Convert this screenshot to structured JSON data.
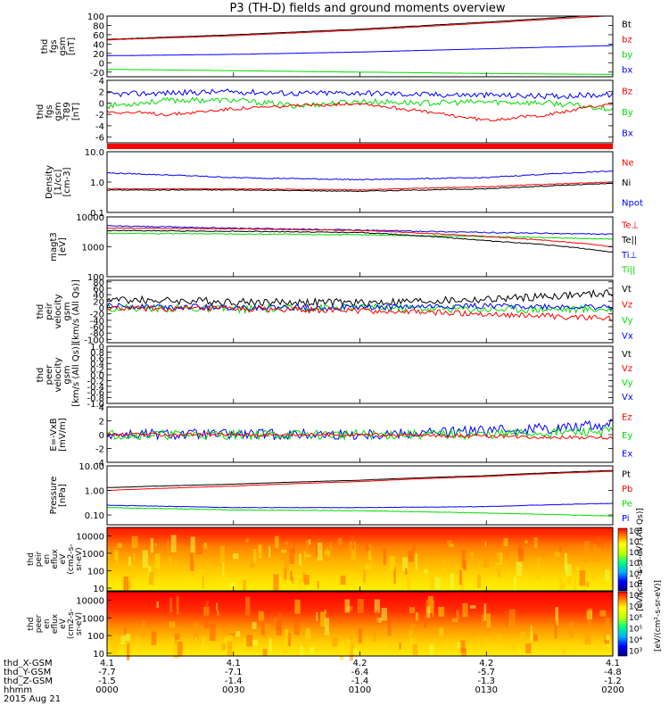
{
  "title": "P3 (TH-D) fields and ground moments overview",
  "colors": {
    "black": "#000000",
    "red": "#ff0000",
    "green": "#00dd00",
    "blue": "#0000ff"
  },
  "chart_data": {
    "type": "line",
    "x_ticks": [
      "0000",
      "0030",
      "0100",
      "0130",
      "0200"
    ],
    "panels": [
      {
        "id": "fgs",
        "ylabel": [
          "thd",
          "fgs",
          "gsm",
          "[nT]"
        ],
        "ylim": [
          -30,
          100
        ],
        "ticks": [
          "100",
          "80",
          "60",
          "40",
          "20",
          "0",
          "-20"
        ],
        "tick_values": [
          100,
          80,
          60,
          40,
          20,
          0,
          -20
        ],
        "legend": [
          {
            "label": "Bt",
            "color": "black"
          },
          {
            "label": "bz",
            "color": "red"
          },
          {
            "label": "by",
            "color": "green"
          },
          {
            "label": "bx",
            "color": "blue"
          }
        ],
        "series": [
          {
            "name": "Bt",
            "color": "black",
            "x": [
              0,
              0.5,
              1,
              1.5,
              2
            ],
            "y": [
              50,
              60,
              72,
              87,
              104
            ],
            "noise": 0.3
          },
          {
            "name": "bz",
            "color": "red",
            "x": [
              0,
              0.5,
              1,
              1.5,
              2
            ],
            "y": [
              49,
              58,
              70,
              85,
              101
            ],
            "noise": 0.3
          },
          {
            "name": "by",
            "color": "green",
            "x": [
              0,
              0.5,
              1,
              1.5,
              2
            ],
            "y": [
              -14,
              -17,
              -20,
              -23,
              -25
            ],
            "noise": 0.2
          },
          {
            "name": "bx",
            "color": "blue",
            "x": [
              0,
              0.5,
              1,
              1.5,
              2
            ],
            "y": [
              15,
              18,
              23,
              30,
              37
            ],
            "noise": 0.2
          }
        ]
      },
      {
        "id": "fgs_dif",
        "ylabel": [
          "thd",
          "fgs",
          "gsm",
          "-T89",
          "[nT]"
        ],
        "ylim": [
          -7,
          4
        ],
        "ticks": [
          "4",
          "2",
          "0",
          "-2",
          "-4",
          "-6"
        ],
        "tick_values": [
          4,
          2,
          0,
          -2,
          -4,
          -6
        ],
        "legend": [
          {
            "label": "Bz",
            "color": "red"
          },
          {
            "label": "By",
            "color": "green"
          },
          {
            "label": "Bx",
            "color": "blue"
          }
        ],
        "flag_bar": true,
        "series": [
          {
            "name": "Bx",
            "color": "blue",
            "x": [
              0,
              0.25,
              0.5,
              0.75,
              1,
              1.25,
              1.5,
              1.75,
              2
            ],
            "y": [
              1.5,
              1.8,
              2.0,
              1.7,
              1.8,
              1.5,
              1.4,
              1.2,
              1.5
            ],
            "noise": 0.5
          },
          {
            "name": "By",
            "color": "green",
            "x": [
              0,
              0.25,
              0.5,
              0.75,
              1,
              1.25,
              1.5,
              1.75,
              2
            ],
            "y": [
              -0.5,
              0.5,
              0.5,
              -0.5,
              0.3,
              0,
              0.2,
              0,
              -1.0
            ],
            "noise": 0.5
          },
          {
            "name": "Bz",
            "color": "red",
            "x": [
              0,
              0.25,
              0.5,
              0.75,
              1,
              1.25,
              1.5,
              1.75,
              2
            ],
            "y": [
              -1.5,
              -2.0,
              -1.0,
              -0.5,
              0,
              -1.5,
              -3.0,
              -2.0,
              0
            ],
            "noise": 0.3
          }
        ]
      },
      {
        "id": "density",
        "ylabel": [
          "Density",
          "[1/cc]",
          "[cm-3]"
        ],
        "log": true,
        "ylim": [
          0.1,
          10
        ],
        "ticks": [
          "10.0",
          "1.0",
          "0.1"
        ],
        "tick_values": [
          10,
          1,
          0.1
        ],
        "legend": [
          {
            "label": "Ne",
            "color": "red"
          },
          {
            "label": "Ni",
            "color": "black"
          },
          {
            "label": "Npot",
            "color": "blue"
          }
        ],
        "series": [
          {
            "name": "Npot",
            "color": "blue",
            "x": [
              0,
              0.5,
              1,
              1.5,
              2
            ],
            "y": [
              2.0,
              1.4,
              1.2,
              1.4,
              2.3
            ],
            "noise": 0.04
          },
          {
            "name": "Ne",
            "color": "red",
            "x": [
              0,
              0.5,
              1,
              1.5,
              2
            ],
            "y": [
              0.6,
              0.6,
              0.55,
              0.7,
              1.0
            ],
            "noise": 0.03
          },
          {
            "name": "Ni",
            "color": "black",
            "x": [
              0,
              0.5,
              1,
              1.5,
              2
            ],
            "y": [
              0.55,
              0.55,
              0.5,
              0.6,
              0.9
            ],
            "noise": 0.03
          }
        ]
      },
      {
        "id": "temp",
        "ylabel": [
          "magt3",
          "[eV]"
        ],
        "log": true,
        "ylim": [
          100,
          10000
        ],
        "ticks": [
          "10000",
          "1000",
          "100"
        ],
        "tick_values": [
          10000,
          1000,
          100
        ],
        "legend": [
          {
            "label": "Te⊥",
            "color": "red"
          },
          {
            "label": "Te||",
            "color": "black"
          },
          {
            "label": "Ti⊥",
            "color": "blue"
          },
          {
            "label": "Ti||",
            "color": "green"
          }
        ],
        "series": [
          {
            "name": "Ti⊥",
            "color": "blue",
            "x": [
              0,
              0.5,
              1,
              1.5,
              2
            ],
            "y": [
              5000,
              4200,
              3600,
              3000,
              2600
            ],
            "noise": 0.04
          },
          {
            "name": "Ti||",
            "color": "green",
            "x": [
              0,
              0.5,
              1,
              1.5,
              2
            ],
            "y": [
              2800,
              2700,
              2500,
              2200,
              1800
            ],
            "noise": 0.04
          },
          {
            "name": "Te⊥",
            "color": "red",
            "x": [
              0,
              0.5,
              1,
              1.5,
              2
            ],
            "y": [
              4200,
              4000,
              3500,
              2200,
              1000
            ],
            "noise": 0.03
          },
          {
            "name": "Te||",
            "color": "black",
            "x": [
              0,
              0.5,
              1,
              1.5,
              2
            ],
            "y": [
              3500,
              3300,
              3000,
              1600,
              650
            ],
            "noise": 0.03
          }
        ]
      },
      {
        "id": "peir_vel",
        "ylabel": [
          "thd",
          "peir",
          "velocity",
          "gsm",
          "[km/s (All Qs)]"
        ],
        "ylim": [
          -110,
          85
        ],
        "ticks": [
          "80",
          "60",
          "40",
          "20",
          "0",
          "-20",
          "-40",
          "-60",
          "-80",
          "-100"
        ],
        "tick_values": [
          80,
          60,
          40,
          20,
          0,
          -20,
          -40,
          -60,
          -80,
          -100
        ],
        "legend": [
          {
            "label": "Vt",
            "color": "black"
          },
          {
            "label": "Vz",
            "color": "red"
          },
          {
            "label": "Vy",
            "color": "green"
          },
          {
            "label": "Vx",
            "color": "blue"
          }
        ],
        "series": [
          {
            "name": "Vt",
            "color": "black",
            "x": [
              0,
              0.5,
              1,
              1.5,
              2
            ],
            "y": [
              25,
              18,
              15,
              25,
              45
            ],
            "noise": 12
          },
          {
            "name": "Vy",
            "color": "green",
            "x": [
              0,
              0.5,
              1,
              1.5,
              2
            ],
            "y": [
              0,
              -5,
              0,
              -5,
              -5
            ],
            "noise": 12
          },
          {
            "name": "Vx",
            "color": "blue",
            "x": [
              0,
              0.5,
              1,
              1.5,
              2
            ],
            "y": [
              5,
              0,
              0,
              5,
              0
            ],
            "noise": 9
          },
          {
            "name": "Vz",
            "color": "red",
            "x": [
              0,
              0.5,
              1,
              1.5,
              2
            ],
            "y": [
              -3,
              -5,
              -10,
              -20,
              -35
            ],
            "noise": 9
          }
        ]
      },
      {
        "id": "peer_vel",
        "ylabel": [
          "thd",
          "peer",
          "velocity",
          "gsm",
          "[km/s (All Qs)]"
        ],
        "ylim": [
          -1,
          1
        ],
        "ticks": [
          "1.0",
          "0.8",
          "0.6",
          "0.4",
          "0.2",
          "0.0",
          "-0.2",
          "-0.4",
          "-0.6",
          "-0.8",
          "-1.0"
        ],
        "tick_values": [
          1,
          0.8,
          0.6,
          0.4,
          0.2,
          0,
          -0.2,
          -0.4,
          -0.6,
          -0.8,
          -1
        ],
        "legend": [
          {
            "label": "Vt",
            "color": "black"
          },
          {
            "label": "Vz",
            "color": "red"
          },
          {
            "label": "Vy",
            "color": "green"
          },
          {
            "label": "Vx",
            "color": "blue"
          }
        ],
        "series": []
      },
      {
        "id": "efield",
        "ylabel": [
          "E=-VxB",
          "[mV/m]"
        ],
        "ylim": [
          -4,
          4
        ],
        "ticks": [
          "4",
          "2",
          "0",
          "-2",
          "-4"
        ],
        "tick_values": [
          4,
          2,
          0,
          -2,
          -4
        ],
        "legend": [
          {
            "label": "Ez",
            "color": "red"
          },
          {
            "label": "Ey",
            "color": "green"
          },
          {
            "label": "Ex",
            "color": "blue"
          }
        ],
        "series": [
          {
            "name": "Ex",
            "color": "blue",
            "x": [
              0,
              0.5,
              1,
              1.5,
              2
            ],
            "y": [
              0,
              0,
              0,
              0.5,
              1.5
            ],
            "noise": 0.8
          },
          {
            "name": "Ey",
            "color": "green",
            "x": [
              0,
              0.5,
              1,
              1.5,
              2
            ],
            "y": [
              0,
              0,
              0,
              0,
              0.5
            ],
            "noise": 0.7
          },
          {
            "name": "Ez",
            "color": "red",
            "x": [
              0,
              0.5,
              1,
              1.5,
              2
            ],
            "y": [
              0,
              0,
              0,
              -0.2,
              -0.5
            ],
            "noise": 0.25
          }
        ]
      },
      {
        "id": "pressure",
        "ylabel": [
          "Pressure",
          "[nPa]"
        ],
        "log": true,
        "ylim": [
          0.04,
          10
        ],
        "ticks": [
          "10.00",
          "1.00",
          "0.10"
        ],
        "tick_values": [
          10,
          1,
          0.1
        ],
        "legend": [
          {
            "label": "Pt",
            "color": "black"
          },
          {
            "label": "Pb",
            "color": "red"
          },
          {
            "label": "Pe",
            "color": "green"
          },
          {
            "label": "Pi",
            "color": "blue"
          }
        ],
        "series": [
          {
            "name": "Pt",
            "color": "black",
            "x": [
              0,
              0.5,
              1,
              1.5,
              2
            ],
            "y": [
              1.3,
              1.8,
              2.6,
              4.0,
              6.5
            ],
            "noise": 0.01
          },
          {
            "name": "Pb",
            "color": "red",
            "x": [
              0,
              0.5,
              1,
              1.5,
              2
            ],
            "y": [
              1.0,
              1.5,
              2.3,
              3.7,
              6.0
            ],
            "noise": 0.01
          },
          {
            "name": "Pi",
            "color": "blue",
            "x": [
              0,
              0.5,
              1,
              1.5,
              2
            ],
            "y": [
              0.25,
              0.2,
              0.2,
              0.22,
              0.3
            ],
            "noise": 0.02
          },
          {
            "name": "Pe",
            "color": "green",
            "x": [
              0,
              0.5,
              1,
              1.5,
              2
            ],
            "y": [
              0.2,
              0.16,
              0.15,
              0.12,
              0.09
            ],
            "noise": 0.02
          }
        ]
      }
    ],
    "spectrograms": [
      {
        "id": "peir_en",
        "ylabel": [
          "thd",
          "peir",
          "en",
          "eflux",
          "eV",
          "(cm2-s-",
          "sr-eV)"
        ],
        "log": true,
        "ylim": [
          7,
          30000
        ],
        "ticks": [
          "10000",
          "1000",
          "100",
          "10"
        ],
        "tick_values": [
          10000,
          1000,
          100,
          10
        ]
      },
      {
        "id": "peer_en",
        "ylabel": [
          "thd",
          "peer",
          "en",
          "eflux",
          "eV",
          "(cm2-s-",
          "sr-eV)"
        ],
        "log": true,
        "ylim": [
          7,
          30000
        ],
        "ticks": [
          "10000",
          "1000",
          "100",
          "10"
        ],
        "tick_values": [
          10000,
          1000,
          100,
          10
        ]
      }
    ],
    "colorbar": {
      "ticks": [
        "10⁸",
        "10⁷",
        "10⁶",
        "10⁵",
        "10⁴",
        "10³"
      ],
      "label_upper": "[eV/(cm²-s-sr-eV) (All Qs)]",
      "label_lower": "[eV/(cm²-s-sr-eV)]"
    },
    "footer": {
      "row_labels": [
        "thd_X-GSM",
        "thd_Y-GSM",
        "thd_Z-GSM",
        "hhmm",
        "2015 Aug 21"
      ],
      "columns": [
        [
          "4.1",
          "-7.7",
          "-1.5",
          "0000"
        ],
        [
          "4.1",
          "-7.1",
          "-1.4",
          "0030"
        ],
        [
          "4.2",
          "-6.4",
          "-1.4",
          "0100"
        ],
        [
          "4.2",
          "-5.7",
          "-1.3",
          "0130"
        ],
        [
          "4.1",
          "-4.8",
          "-1.2",
          "0200"
        ]
      ]
    }
  }
}
